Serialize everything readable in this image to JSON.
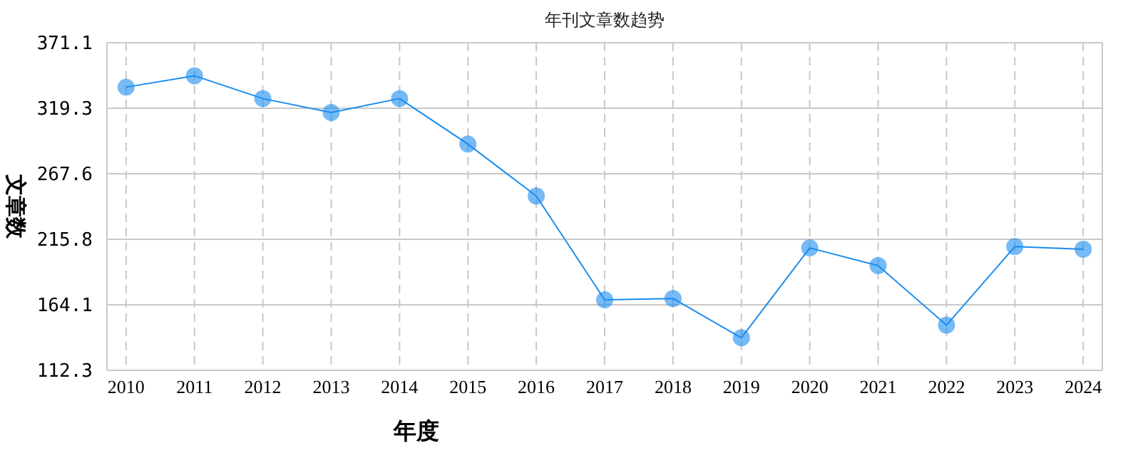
{
  "chart_data": {
    "type": "line",
    "title": "年刊文章数趋势",
    "xlabel": "年度",
    "ylabel": "文章数",
    "categories": [
      "2010",
      "2011",
      "2012",
      "2013",
      "2014",
      "2015",
      "2016",
      "2017",
      "2018",
      "2019",
      "2020",
      "2021",
      "2022",
      "2023",
      "2024"
    ],
    "series": [
      {
        "color": "#1a8cf0",
        "values": [
          336,
          345,
          327,
          316,
          327,
          291,
          250,
          168,
          169,
          138,
          209,
          195,
          148,
          210,
          208
        ]
      }
    ],
    "ylim": [
      112.3,
      371.1
    ],
    "yticks": [
      112.3,
      164.1,
      215.8,
      267.6,
      319.3,
      371.1
    ],
    "grid": true,
    "marker": "circle",
    "line_style": "solid"
  }
}
